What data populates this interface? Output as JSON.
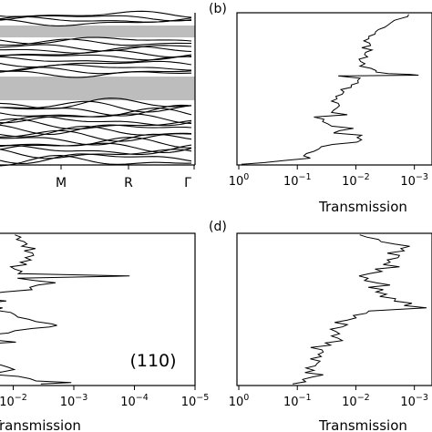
{
  "panel_labels": {
    "b": "(b)",
    "d": "(d)"
  },
  "annotation_110": "(110)",
  "chart_data": [
    {
      "panel": "a",
      "type": "line",
      "title": "",
      "xlabel": "",
      "ylabel": "",
      "x_tick_labels": [
        "M",
        "R",
        "Γ"
      ],
      "band_gaps": "two shaded (gray) regions spanning the full width",
      "series": "many dispersion bands (black curves)",
      "grid": false
    },
    {
      "panel": "b",
      "type": "line",
      "xlabel": "Transmission",
      "x_scale": "log-reversed",
      "x_ticks": [
        {
          "base": "10",
          "exp": "0"
        },
        {
          "base": "10",
          "exp": "−1"
        },
        {
          "base": "10",
          "exp": "−2"
        },
        {
          "base": "10",
          "exp": "−3"
        }
      ],
      "xlim": [
        1,
        0.0005
      ],
      "ylim": [
        0,
        1
      ],
      "grid": false,
      "series": [
        {
          "values": [
            [
              0.00125,
              0.99
            ],
            [
              0.0013,
              0.975
            ],
            [
              0.0018,
              0.96
            ],
            [
              0.0022,
              0.95
            ],
            [
              0.0025,
              0.935
            ],
            [
              0.0028,
              0.92
            ],
            [
              0.0032,
              0.905
            ],
            [
              0.0041,
              0.89
            ],
            [
              0.0046,
              0.875
            ],
            [
              0.0047,
              0.86
            ],
            [
              0.006,
              0.845
            ],
            [
              0.006,
              0.83
            ],
            [
              0.0073,
              0.815
            ],
            [
              0.0058,
              0.8
            ],
            [
              0.0056,
              0.785
            ],
            [
              0.0079,
              0.77
            ],
            [
              0.0053,
              0.755
            ],
            [
              0.0068,
              0.74
            ],
            [
              0.0071,
              0.725
            ],
            [
              0.0063,
              0.71
            ],
            [
              0.0088,
              0.695
            ],
            [
              0.0083,
              0.68
            ],
            [
              0.007,
              0.665
            ],
            [
              0.0085,
              0.65
            ],
            [
              0.0055,
              0.635
            ],
            [
              0.0045,
              0.62
            ],
            [
              0.0045,
              0.61
            ],
            [
              0.0028,
              0.6
            ],
            [
              0.0012,
              0.595
            ],
            [
              0.00085,
              0.59
            ],
            [
              0.02,
              0.585
            ],
            [
              0.0085,
              0.57
            ],
            [
              0.0093,
              0.555
            ],
            [
              0.0091,
              0.54
            ],
            [
              0.012,
              0.525
            ],
            [
              0.012,
              0.51
            ],
            [
              0.018,
              0.495
            ],
            [
              0.016,
              0.48
            ],
            [
              0.017,
              0.465
            ],
            [
              0.022,
              0.45
            ],
            [
              0.021,
              0.435
            ],
            [
              0.026,
              0.42
            ],
            [
              0.02,
              0.405
            ],
            [
              0.019,
              0.39
            ],
            [
              0.021,
              0.375
            ],
            [
              0.024,
              0.36
            ],
            [
              0.026,
              0.345
            ],
            [
              0.014,
              0.33
            ],
            [
              0.052,
              0.315
            ],
            [
              0.035,
              0.3
            ],
            [
              0.037,
              0.285
            ],
            [
              0.03,
              0.27
            ],
            [
              0.026,
              0.255
            ],
            [
              0.011,
              0.24
            ],
            [
              0.019,
              0.225
            ],
            [
              0.024,
              0.21
            ],
            [
              0.008,
              0.195
            ],
            [
              0.0095,
              0.18
            ],
            [
              0.008,
              0.165
            ],
            [
              0.0095,
              0.15
            ],
            [
              0.025,
              0.135
            ],
            [
              0.039,
              0.12
            ],
            [
              0.043,
              0.105
            ],
            [
              0.052,
              0.09
            ],
            [
              0.07,
              0.075
            ],
            [
              0.078,
              0.06
            ],
            [
              0.06,
              0.045
            ],
            [
              0.16,
              0.03
            ],
            [
              0.38,
              0.015
            ],
            [
              0.9,
              0.005
            ]
          ]
        }
      ]
    },
    {
      "panel": "c",
      "type": "line",
      "xlabel": "Transmission",
      "x_scale": "log-reversed",
      "x_ticks": [
        {
          "base": "10",
          "exp": "−2"
        },
        {
          "base": "10",
          "exp": "−3"
        },
        {
          "base": "10",
          "exp": "−4"
        },
        {
          "base": "10",
          "exp": "−5"
        }
      ],
      "xlim": [
        0.1,
        1e-05
      ],
      "ylim": [
        0,
        1
      ],
      "grid": false,
      "series": [
        {
          "values": [
            [
              0.0094,
              0.99
            ],
            [
              0.0075,
              0.975
            ],
            [
              0.0088,
              0.96
            ],
            [
              0.0066,
              0.945
            ],
            [
              0.0059,
              0.93
            ],
            [
              0.0072,
              0.915
            ],
            [
              0.0043,
              0.9
            ],
            [
              0.0066,
              0.885
            ],
            [
              0.0048,
              0.87
            ],
            [
              0.0046,
              0.855
            ],
            [
              0.0063,
              0.84
            ],
            [
              0.0051,
              0.825
            ],
            [
              0.0076,
              0.81
            ],
            [
              0.006,
              0.795
            ],
            [
              0.011,
              0.78
            ],
            [
              0.0095,
              0.765
            ],
            [
              0.0072,
              0.75
            ],
            [
              0.0082,
              0.735
            ],
            [
              0.00012,
              0.72
            ],
            [
              0.0085,
              0.705
            ],
            [
              0.0045,
              0.69
            ],
            [
              0.002,
              0.675
            ],
            [
              0.0039,
              0.66
            ],
            [
              0.0053,
              0.645
            ],
            [
              0.0049,
              0.63
            ],
            [
              0.0135,
              0.615
            ],
            [
              0.034,
              0.6
            ],
            [
              0.018,
              0.585
            ],
            [
              0.033,
              0.57
            ],
            [
              0.013,
              0.555
            ],
            [
              0.038,
              0.54
            ],
            [
              0.042,
              0.525
            ],
            [
              0.015,
              0.51
            ],
            [
              0.02,
              0.495
            ],
            [
              0.011,
              0.48
            ],
            [
              0.0094,
              0.465
            ],
            [
              0.0084,
              0.45
            ],
            [
              0.0055,
              0.435
            ],
            [
              0.0042,
              0.42
            ],
            [
              0.0023,
              0.405
            ],
            [
              0.0019,
              0.395
            ],
            [
              0.0025,
              0.385
            ],
            [
              0.0048,
              0.375
            ],
            [
              0.0094,
              0.36
            ],
            [
              0.012,
              0.345
            ],
            [
              0.03,
              0.33
            ],
            [
              0.018,
              0.315
            ],
            [
              0.023,
              0.3
            ],
            [
              0.009,
              0.285
            ],
            [
              0.046,
              0.27
            ],
            [
              0.018,
              0.255
            ],
            [
              0.028,
              0.24
            ],
            [
              0.021,
              0.225
            ],
            [
              0.018,
              0.21
            ],
            [
              0.025,
              0.195
            ],
            [
              0.03,
              0.18
            ],
            [
              0.018,
              0.165
            ],
            [
              0.022,
              0.15
            ],
            [
              0.016,
              0.135
            ],
            [
              0.012,
              0.12
            ],
            [
              0.0096,
              0.105
            ],
            [
              0.015,
              0.09
            ],
            [
              0.026,
              0.075
            ],
            [
              0.0082,
              0.06
            ],
            [
              0.0053,
              0.045
            ],
            [
              0.0042,
              0.03
            ],
            [
              0.0011,
              0.02
            ],
            [
              0.0035,
              0.01
            ]
          ]
        }
      ]
    },
    {
      "panel": "d",
      "type": "line",
      "xlabel": "Transmission",
      "x_scale": "log-reversed",
      "x_ticks": [
        {
          "base": "10",
          "exp": "0"
        },
        {
          "base": "10",
          "exp": "−1"
        },
        {
          "base": "10",
          "exp": "−2"
        },
        {
          "base": "10",
          "exp": "−3"
        }
      ],
      "xlim": [
        1,
        0.0005
      ],
      "ylim": [
        0,
        1
      ],
      "grid": false,
      "series": [
        {
          "values": [
            [
              0.0086,
              0.99
            ],
            [
              0.0065,
              0.975
            ],
            [
              0.0041,
              0.96
            ],
            [
              0.0037,
              0.945
            ],
            [
              0.0022,
              0.93
            ],
            [
              0.0012,
              0.915
            ],
            [
              0.0017,
              0.9
            ],
            [
              0.0015,
              0.885
            ],
            [
              0.0029,
              0.87
            ],
            [
              0.0018,
              0.855
            ],
            [
              0.0019,
              0.84
            ],
            [
              0.0029,
              0.825
            ],
            [
              0.0026,
              0.81
            ],
            [
              0.0034,
              0.795
            ],
            [
              0.0018,
              0.78
            ],
            [
              0.0047,
              0.765
            ],
            [
              0.0036,
              0.75
            ],
            [
              0.0059,
              0.735
            ],
            [
              0.0088,
              0.72
            ],
            [
              0.0062,
              0.705
            ],
            [
              0.0071,
              0.69
            ],
            [
              0.0045,
              0.675
            ],
            [
              0.0026,
              0.66
            ],
            [
              0.0061,
              0.645
            ],
            [
              0.0034,
              0.63
            ],
            [
              0.0045,
              0.615
            ],
            [
              0.003,
              0.6
            ],
            [
              0.0039,
              0.585
            ],
            [
              0.0021,
              0.57
            ],
            [
              0.0022,
              0.555
            ],
            [
              0.0011,
              0.54
            ],
            [
              0.0015,
              0.525
            ],
            [
              0.00062,
              0.51
            ],
            [
              0.006,
              0.49
            ],
            [
              0.0066,
              0.475
            ],
            [
              0.011,
              0.46
            ],
            [
              0.0099,
              0.445
            ],
            [
              0.014,
              0.43
            ],
            [
              0.023,
              0.415
            ],
            [
              0.014,
              0.4
            ],
            [
              0.017,
              0.385
            ],
            [
              0.027,
              0.37
            ],
            [
              0.022,
              0.355
            ],
            [
              0.019,
              0.34
            ],
            [
              0.026,
              0.325
            ],
            [
              0.02,
              0.31
            ],
            [
              0.017,
              0.295
            ],
            [
              0.033,
              0.28
            ],
            [
              0.027,
              0.265
            ],
            [
              0.059,
              0.25
            ],
            [
              0.038,
              0.235
            ],
            [
              0.036,
              0.22
            ],
            [
              0.044,
              0.205
            ],
            [
              0.039,
              0.19
            ],
            [
              0.06,
              0.175
            ],
            [
              0.041,
              0.16
            ],
            [
              0.046,
              0.145
            ],
            [
              0.049,
              0.13
            ],
            [
              0.071,
              0.115
            ],
            [
              0.052,
              0.1
            ],
            [
              0.074,
              0.085
            ],
            [
              0.036,
              0.07
            ],
            [
              0.056,
              0.055
            ],
            [
              0.081,
              0.04
            ],
            [
              0.072,
              0.025
            ],
            [
              0.12,
              0.01
            ]
          ]
        }
      ]
    }
  ]
}
